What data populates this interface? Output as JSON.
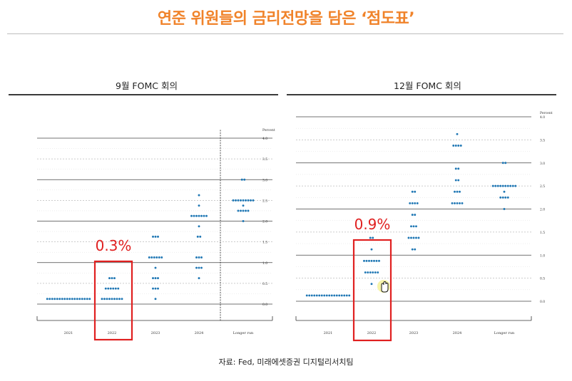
{
  "page": {
    "title": "연준 위원들의 금리전망을 담은 ‘점도표’",
    "source": "자료: Fed, 미래에셋증권 디지털리서치팀"
  },
  "colors": {
    "accent": "#f0832a",
    "dot": "#1f77b4",
    "highlight": "#e02020"
  },
  "chart_data": [
    {
      "type": "scatter",
      "title": "9월 FOMC 회의",
      "ylabel": "Percent",
      "categories": [
        "2021",
        "2022",
        "2023",
        "2024",
        "Longer run"
      ],
      "ylim": [
        0,
        4.0
      ],
      "yticks": [
        "0.0",
        "0.5",
        "1.0",
        "1.5",
        "2.0",
        "2.5",
        "3.0",
        "3.5",
        "4.0"
      ],
      "dots": [
        {
          "x": "2021",
          "y": 0.125,
          "count": 18
        },
        {
          "x": "2022",
          "y": 0.125,
          "count": 9
        },
        {
          "x": "2022",
          "y": 0.375,
          "count": 6
        },
        {
          "x": "2022",
          "y": 0.625,
          "count": 3
        },
        {
          "x": "2023",
          "y": 0.125,
          "count": 1
        },
        {
          "x": "2023",
          "y": 0.375,
          "count": 3
        },
        {
          "x": "2023",
          "y": 0.625,
          "count": 3
        },
        {
          "x": "2023",
          "y": 0.875,
          "count": 1
        },
        {
          "x": "2023",
          "y": 1.125,
          "count": 6
        },
        {
          "x": "2023",
          "y": 1.625,
          "count": 3
        },
        {
          "x": "2024",
          "y": 0.625,
          "count": 1
        },
        {
          "x": "2024",
          "y": 0.875,
          "count": 3
        },
        {
          "x": "2024",
          "y": 1.125,
          "count": 3
        },
        {
          "x": "2024",
          "y": 1.625,
          "count": 2
        },
        {
          "x": "2024",
          "y": 1.875,
          "count": 1
        },
        {
          "x": "2024",
          "y": 2.125,
          "count": 7
        },
        {
          "x": "2024",
          "y": 2.375,
          "count": 1
        },
        {
          "x": "2024",
          "y": 2.625,
          "count": 1
        },
        {
          "x": "Longer run",
          "y": 2.0,
          "count": 1
        },
        {
          "x": "Longer run",
          "y": 2.25,
          "count": 5
        },
        {
          "x": "Longer run",
          "y": 2.375,
          "count": 1
        },
        {
          "x": "Longer run",
          "y": 2.5,
          "count": 9
        },
        {
          "x": "Longer run",
          "y": 3.0,
          "count": 2
        }
      ],
      "annotation": {
        "label": "0.3%",
        "category": "2022"
      }
    },
    {
      "type": "scatter",
      "title": "12월 FOMC 회의",
      "ylabel": "Percent",
      "categories": [
        "2021",
        "2022",
        "2023",
        "2024",
        "Longer run"
      ],
      "ylim": [
        0,
        4.0
      ],
      "yticks": [
        "0.0",
        "0.5",
        "1.0",
        "1.5",
        "2.0",
        "2.5",
        "3.0",
        "3.5",
        "4.0"
      ],
      "dots": [
        {
          "x": "2021",
          "y": 0.125,
          "count": 18
        },
        {
          "x": "2022",
          "y": 0.375,
          "count": 1
        },
        {
          "x": "2022",
          "y": 0.625,
          "count": 6
        },
        {
          "x": "2022",
          "y": 0.875,
          "count": 7
        },
        {
          "x": "2022",
          "y": 1.125,
          "count": 1
        },
        {
          "x": "2022",
          "y": 1.375,
          "count": 2
        },
        {
          "x": "2023",
          "y": 1.125,
          "count": 2
        },
        {
          "x": "2023",
          "y": 1.375,
          "count": 5
        },
        {
          "x": "2023",
          "y": 1.625,
          "count": 3
        },
        {
          "x": "2023",
          "y": 1.875,
          "count": 2
        },
        {
          "x": "2023",
          "y": 2.125,
          "count": 4
        },
        {
          "x": "2023",
          "y": 2.375,
          "count": 2
        },
        {
          "x": "2024",
          "y": 2.125,
          "count": 5
        },
        {
          "x": "2024",
          "y": 2.375,
          "count": 3
        },
        {
          "x": "2024",
          "y": 2.625,
          "count": 2
        },
        {
          "x": "2024",
          "y": 2.875,
          "count": 2
        },
        {
          "x": "2024",
          "y": 3.375,
          "count": 4
        },
        {
          "x": "2024",
          "y": 3.625,
          "count": 1
        },
        {
          "x": "Longer run",
          "y": 2.0,
          "count": 1
        },
        {
          "x": "Longer run",
          "y": 2.25,
          "count": 4
        },
        {
          "x": "Longer run",
          "y": 2.375,
          "count": 1
        },
        {
          "x": "Longer run",
          "y": 2.5,
          "count": 10
        },
        {
          "x": "Longer run",
          "y": 3.0,
          "count": 2
        }
      ],
      "annotation": {
        "label": "0.9%",
        "category": "2022"
      }
    }
  ]
}
